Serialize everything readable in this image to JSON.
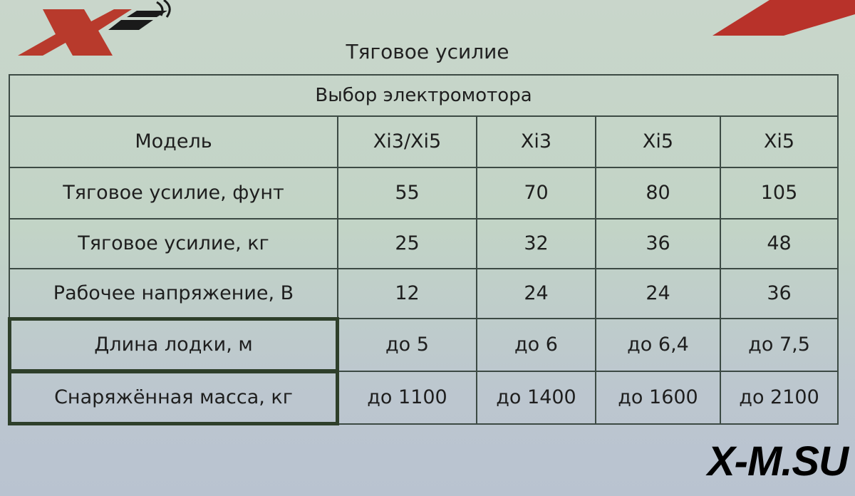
{
  "logo": {
    "name": "X-i logo",
    "colors": {
      "x": "#b83a2c",
      "stripes": "#1a1a1a"
    }
  },
  "title": "Тяговое усилие",
  "table": {
    "caption": "Выбор электромотора",
    "header": {
      "label": "Модель",
      "models": [
        "Xi3/Xi5",
        "Xi3",
        "Xi5",
        "Xi5"
      ]
    },
    "rows": [
      {
        "label": "Тяговое усилие, фунт",
        "values": [
          "55",
          "70",
          "80",
          "105"
        ]
      },
      {
        "label": "Тяговое усилие, кг",
        "values": [
          "25",
          "32",
          "36",
          "48"
        ]
      },
      {
        "label": "Рабочее напряжение, В",
        "values": [
          "12",
          "24",
          "24",
          "36"
        ]
      },
      {
        "label": "Длина лодки, м",
        "values": [
          "до 5",
          "до 6",
          "до 6,4",
          "до 7,5"
        ],
        "highlighted": true
      },
      {
        "label": "Снаряжённая масса, кг",
        "values": [
          "до 1100",
          "до 1400",
          "до 1600",
          "до 2100"
        ],
        "highlighted": true
      }
    ]
  },
  "watermark": "X-M.SU"
}
